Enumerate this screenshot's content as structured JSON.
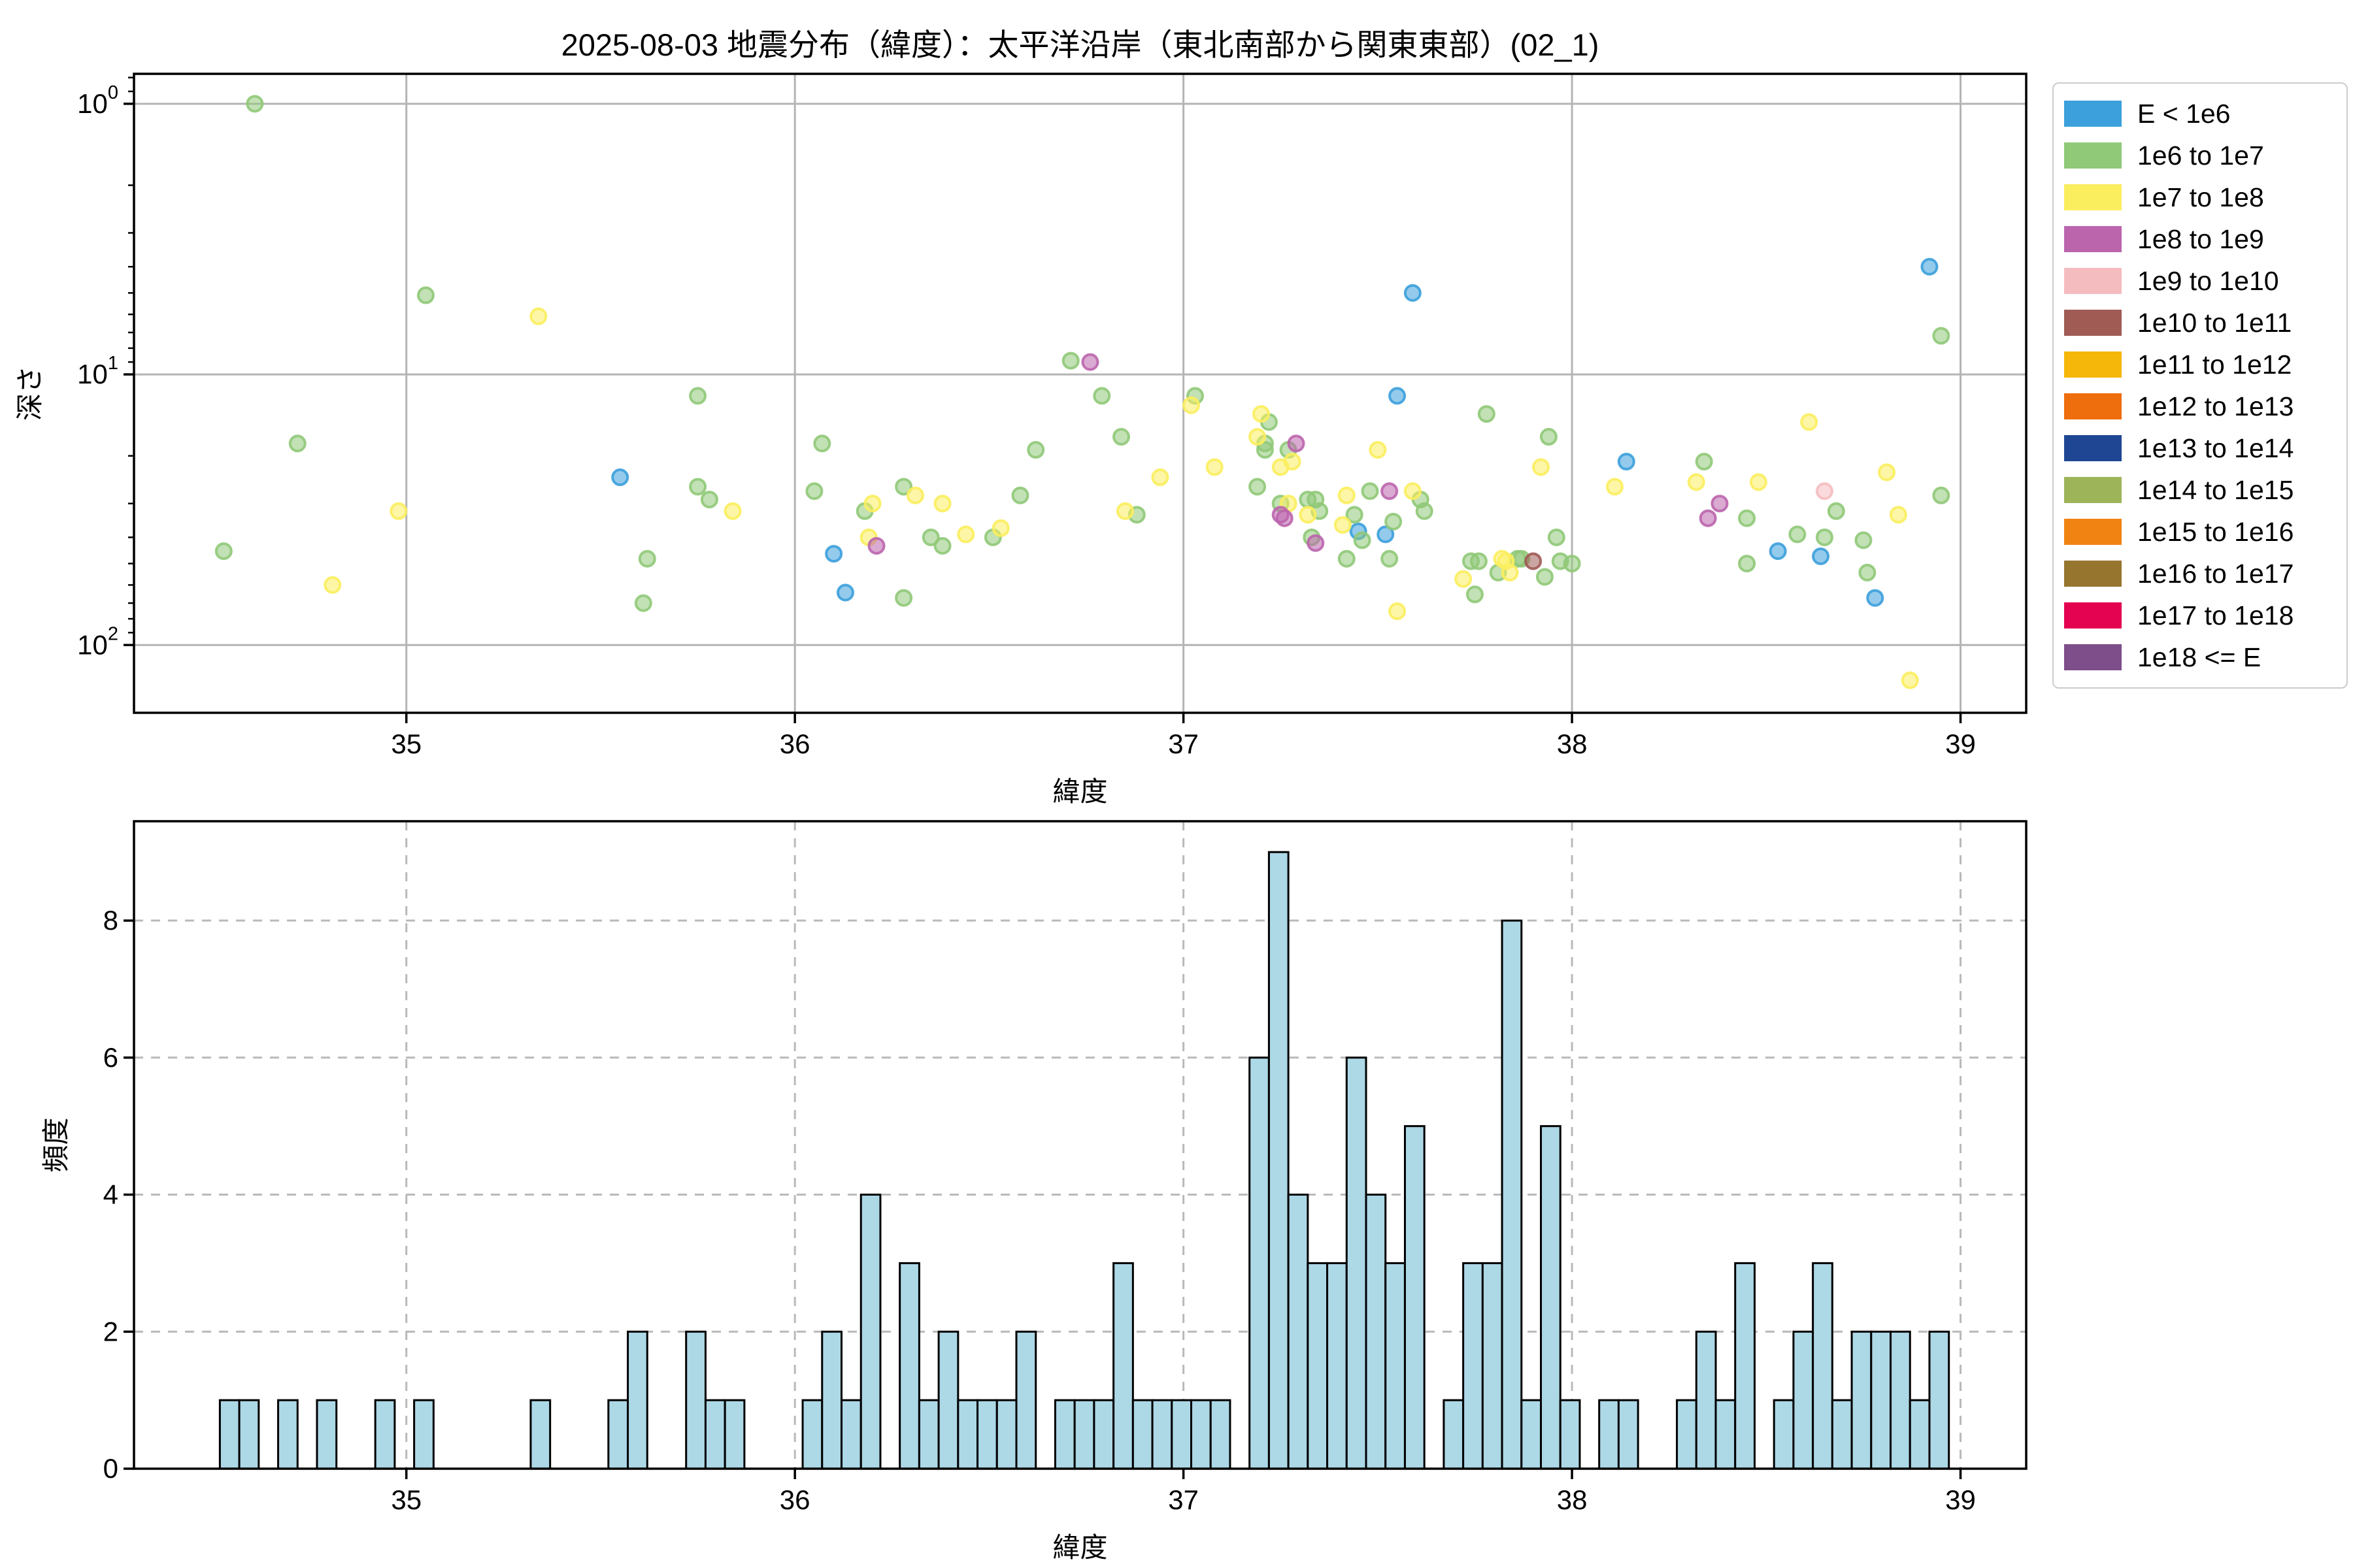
{
  "figure": {
    "title": "2025-08-03 地震分布（緯度）：太平洋沿岸（東北南部から関東東部）(02_1)",
    "background": "#ffffff"
  },
  "scatter_plot": {
    "xlabel": "緯度",
    "ylabel": "深さ",
    "x_tick_labels": [
      "35",
      "36",
      "37",
      "38",
      "39"
    ],
    "x_tick_values": [
      35,
      36,
      37,
      38,
      39
    ],
    "y_tick_labels": [
      {
        "base": "10",
        "exp": "0",
        "value": 1
      },
      {
        "base": "10",
        "exp": "1",
        "value": 10
      },
      {
        "base": "10",
        "exp": "2",
        "value": 100
      }
    ]
  },
  "histogram": {
    "xlabel": "緯度",
    "ylabel": "頻度",
    "x_tick_labels": [
      "35",
      "36",
      "37",
      "38",
      "39"
    ],
    "x_tick_values": [
      35,
      36,
      37,
      38,
      39
    ],
    "y_tick_labels": [
      "0",
      "2",
      "4",
      "6",
      "8"
    ],
    "y_tick_values": [
      0,
      2,
      4,
      6,
      8
    ],
    "bar_color": "#ADD8E6",
    "bar_edge_color": "#000000"
  },
  "legend": {
    "entries": [
      {
        "label": "E < 1e6",
        "color": "#3CA0DC"
      },
      {
        "label": "1e6 to 1e7",
        "color": "#90C978"
      },
      {
        "label": "1e7 to 1e8",
        "color": "#FBEE5E"
      },
      {
        "label": "1e8 to 1e9",
        "color": "#BB65AD"
      },
      {
        "label": "1e9 to 1e10",
        "color": "#F5BCC0"
      },
      {
        "label": "1e10 to 1e11",
        "color": "#A05B55"
      },
      {
        "label": "1e11 to 1e12",
        "color": "#F6B70B"
      },
      {
        "label": "1e12 to 1e13",
        "color": "#EE6D0C"
      },
      {
        "label": "1e13 to 1e14",
        "color": "#1F4693"
      },
      {
        "label": "1e14 to 1e15",
        "color": "#9DB459"
      },
      {
        "label": "1e15 to 1e16",
        "color": "#F08311"
      },
      {
        "label": "1e16 to 1e17",
        "color": "#96762F"
      },
      {
        "label": "1e17 to 1e18",
        "color": "#E30350"
      },
      {
        "label": "1e18 <= E",
        "color": "#7D4E89"
      }
    ]
  },
  "chart_data": [
    {
      "type": "scatter",
      "title": "2025-08-03 地震分布（緯度）：太平洋沿岸（東北南部から関東東部）(02_1)",
      "xlabel": "緯度",
      "ylabel": "深さ",
      "xlim": [
        34.299,
        39.169
      ],
      "ylim": [
        0.775,
        178
      ],
      "y_scale": "log-inverted-depth",
      "grid": "solid",
      "legend_position": "outside-right",
      "series": [
        {
          "name": "E < 1e6",
          "color": "#3CA0DC",
          "points": [
            [
              35.55,
              24
            ],
            [
              36.1,
              46
            ],
            [
              36.13,
              64
            ],
            [
              37.45,
              38
            ],
            [
              37.52,
              39
            ],
            [
              37.55,
              12
            ],
            [
              37.59,
              5.0
            ],
            [
              38.14,
              21
            ],
            [
              38.53,
              45
            ],
            [
              38.64,
              47
            ],
            [
              38.78,
              67
            ],
            [
              38.92,
              4.0
            ]
          ]
        },
        {
          "name": "1e6 to 1e7",
          "color": "#90C978",
          "points": [
            [
              34.53,
              45
            ],
            [
              34.61,
              1.0
            ],
            [
              34.72,
              18
            ],
            [
              35.05,
              5.1
            ],
            [
              35.61,
              70
            ],
            [
              35.62,
              48
            ],
            [
              35.75,
              12
            ],
            [
              35.75,
              26
            ],
            [
              35.78,
              29
            ],
            [
              36.05,
              27
            ],
            [
              36.07,
              18
            ],
            [
              36.18,
              32
            ],
            [
              36.28,
              26
            ],
            [
              36.28,
              67
            ],
            [
              36.35,
              40
            ],
            [
              36.38,
              43
            ],
            [
              36.51,
              40
            ],
            [
              36.58,
              28
            ],
            [
              36.62,
              19
            ],
            [
              36.71,
              8.9
            ],
            [
              36.79,
              12
            ],
            [
              36.84,
              17
            ],
            [
              36.88,
              33
            ],
            [
              37.03,
              12
            ],
            [
              37.19,
              26
            ],
            [
              37.21,
              18
            ],
            [
              37.21,
              19
            ],
            [
              37.22,
              15
            ],
            [
              37.25,
              30
            ],
            [
              37.27,
              19
            ],
            [
              37.32,
              29
            ],
            [
              37.33,
              40
            ],
            [
              37.34,
              29
            ],
            [
              37.35,
              32
            ],
            [
              37.42,
              48
            ],
            [
              37.44,
              33
            ],
            [
              37.46,
              41
            ],
            [
              37.48,
              27
            ],
            [
              37.53,
              48
            ],
            [
              37.54,
              35
            ],
            [
              37.61,
              29
            ],
            [
              37.62,
              32
            ],
            [
              37.74,
              49
            ],
            [
              37.75,
              65
            ],
            [
              37.76,
              49
            ],
            [
              37.78,
              14
            ],
            [
              37.81,
              54
            ],
            [
              37.86,
              48
            ],
            [
              37.87,
              48
            ],
            [
              37.93,
              56
            ],
            [
              37.94,
              17
            ],
            [
              37.96,
              40
            ],
            [
              37.97,
              49
            ],
            [
              38.0,
              50
            ],
            [
              38.34,
              21
            ],
            [
              38.45,
              34
            ],
            [
              38.45,
              50
            ],
            [
              38.58,
              39
            ],
            [
              38.65,
              40
            ],
            [
              38.68,
              32
            ],
            [
              38.75,
              41
            ],
            [
              38.76,
              54
            ],
            [
              38.95,
              7.2
            ],
            [
              38.95,
              28
            ]
          ]
        },
        {
          "name": "1e7 to 1e8",
          "color": "#FBEE5E",
          "points": [
            [
              34.81,
              60
            ],
            [
              34.98,
              32
            ],
            [
              35.34,
              6.1
            ],
            [
              35.84,
              32
            ],
            [
              36.19,
              40
            ],
            [
              36.2,
              30
            ],
            [
              36.31,
              28
            ],
            [
              36.38,
              30
            ],
            [
              36.44,
              39
            ],
            [
              36.53,
              37
            ],
            [
              36.85,
              32
            ],
            [
              36.94,
              24
            ],
            [
              37.02,
              13
            ],
            [
              37.08,
              22
            ],
            [
              37.19,
              17
            ],
            [
              37.2,
              14
            ],
            [
              37.25,
              22
            ],
            [
              37.27,
              30
            ],
            [
              37.28,
              21
            ],
            [
              37.32,
              33
            ],
            [
              37.41,
              36
            ],
            [
              37.42,
              28
            ],
            [
              37.5,
              19
            ],
            [
              37.55,
              75
            ],
            [
              37.59,
              27
            ],
            [
              37.72,
              57
            ],
            [
              37.82,
              48
            ],
            [
              37.83,
              49
            ],
            [
              37.84,
              54
            ],
            [
              37.92,
              22
            ],
            [
              38.11,
              26
            ],
            [
              38.32,
              25
            ],
            [
              38.48,
              25
            ],
            [
              38.61,
              15
            ],
            [
              38.81,
              23
            ],
            [
              38.84,
              33
            ],
            [
              38.87,
              135
            ]
          ]
        },
        {
          "name": "1e8 to 1e9",
          "color": "#BB65AD",
          "points": [
            [
              36.21,
              43
            ],
            [
              36.76,
              9.0
            ],
            [
              37.25,
              33
            ],
            [
              37.26,
              34
            ],
            [
              37.29,
              18
            ],
            [
              37.34,
              42
            ],
            [
              37.53,
              27
            ],
            [
              38.35,
              34
            ],
            [
              38.38,
              30
            ]
          ]
        },
        {
          "name": "1e9 to 1e10",
          "color": "#F5BCC0",
          "points": [
            [
              38.65,
              27
            ]
          ]
        },
        {
          "name": "1e10 to 1e11",
          "color": "#A05B55",
          "points": [
            [
              37.9,
              49
            ]
          ]
        },
        {
          "name": "1e11 to 1e12",
          "color": "#F6B70B",
          "points": []
        },
        {
          "name": "1e12 to 1e13",
          "color": "#EE6D0C",
          "points": []
        },
        {
          "name": "1e13 to 1e14",
          "color": "#1F4693",
          "points": []
        },
        {
          "name": "1e14 to 1e15",
          "color": "#9DB459",
          "points": []
        },
        {
          "name": "1e15 to 1e16",
          "color": "#F08311",
          "points": []
        },
        {
          "name": "1e16 to 1e17",
          "color": "#96762F",
          "points": []
        },
        {
          "name": "1e17 to 1e18",
          "color": "#E30350",
          "points": []
        },
        {
          "name": "1e18 <= E",
          "color": "#7D4E89",
          "points": []
        }
      ]
    },
    {
      "type": "bar",
      "xlabel": "緯度",
      "ylabel": "頻度",
      "xlim": [
        34.299,
        39.169
      ],
      "ylim": [
        0,
        9.45
      ],
      "grid": "dashed",
      "bin_width": 0.05,
      "bins": [
        [
          34.52,
          1
        ],
        [
          34.57,
          1
        ],
        [
          34.67,
          1
        ],
        [
          34.77,
          1
        ],
        [
          34.92,
          1
        ],
        [
          35.02,
          1
        ],
        [
          35.32,
          1
        ],
        [
          35.52,
          1
        ],
        [
          35.57,
          2
        ],
        [
          35.72,
          2
        ],
        [
          35.77,
          1
        ],
        [
          35.82,
          1
        ],
        [
          36.02,
          1
        ],
        [
          36.07,
          2
        ],
        [
          36.12,
          1
        ],
        [
          36.17,
          4
        ],
        [
          36.27,
          3
        ],
        [
          36.32,
          1
        ],
        [
          36.37,
          2
        ],
        [
          36.42,
          1
        ],
        [
          36.47,
          1
        ],
        [
          36.52,
          1
        ],
        [
          36.57,
          2
        ],
        [
          36.67,
          1
        ],
        [
          36.72,
          1
        ],
        [
          36.77,
          1
        ],
        [
          36.82,
          3
        ],
        [
          36.87,
          1
        ],
        [
          36.92,
          1
        ],
        [
          36.97,
          1
        ],
        [
          37.02,
          1
        ],
        [
          37.07,
          1
        ],
        [
          37.17,
          6
        ],
        [
          37.22,
          9
        ],
        [
          37.27,
          4
        ],
        [
          37.32,
          3
        ],
        [
          37.37,
          3
        ],
        [
          37.42,
          6
        ],
        [
          37.47,
          4
        ],
        [
          37.52,
          3
        ],
        [
          37.57,
          5
        ],
        [
          37.67,
          1
        ],
        [
          37.72,
          3
        ],
        [
          37.77,
          3
        ],
        [
          37.82,
          8
        ],
        [
          37.87,
          1
        ],
        [
          37.92,
          5
        ],
        [
          37.97,
          1
        ],
        [
          38.07,
          1
        ],
        [
          38.12,
          1
        ],
        [
          38.27,
          1
        ],
        [
          38.32,
          2
        ],
        [
          38.37,
          1
        ],
        [
          38.42,
          3
        ],
        [
          38.52,
          1
        ],
        [
          38.57,
          2
        ],
        [
          38.62,
          3
        ],
        [
          38.67,
          1
        ],
        [
          38.72,
          2
        ],
        [
          38.77,
          2
        ],
        [
          38.82,
          2
        ],
        [
          38.87,
          1
        ],
        [
          38.92,
          2
        ]
      ]
    }
  ]
}
